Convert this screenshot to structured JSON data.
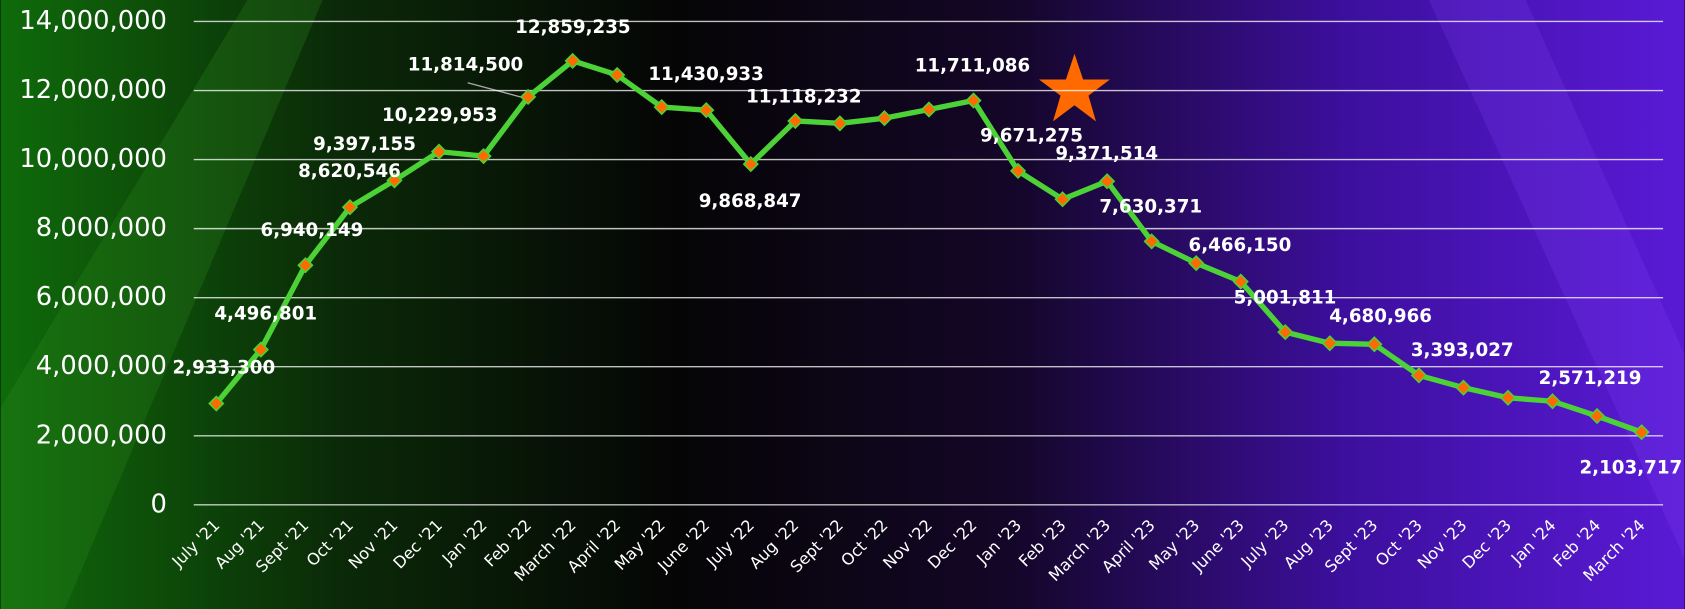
{
  "chart_data": {
    "type": "line",
    "categories": [
      "July '21",
      "Aug '21",
      "Sept '21",
      "Oct '21",
      "Nov '21",
      "Dec '21",
      "Jan '22",
      "Feb '22",
      "March '22",
      "April '22",
      "May '22",
      "June '22",
      "July '22",
      "Aug '22",
      "Sept '22",
      "Oct '22",
      "Nov '22",
      "Dec '22",
      "Jan '23",
      "Feb '23",
      "March '23",
      "April '23",
      "May '23",
      "June '23",
      "July '23",
      "Aug '23",
      "Sept '23",
      "Oct '23",
      "Nov '23",
      "Dec '23",
      "Jan '24",
      "Feb '24",
      "March '24"
    ],
    "values": [
      2933300,
      4496801,
      6940149,
      8620546,
      9397155,
      10229953,
      10100000,
      11814500,
      12859235,
      12450000,
      11520000,
      11430933,
      9868847,
      11118232,
      11050000,
      11200000,
      11450000,
      11711086,
      9671275,
      8850000,
      9371514,
      7630371,
      7000000,
      6466150,
      5001811,
      4680966,
      4650000,
      3750000,
      3393027,
      3100000,
      3000000,
      2571219,
      2103717
    ],
    "value_labels": [
      "2,933,300",
      "4,496,801",
      "6,940,149",
      "8,620,546",
      "9,397,155",
      "10,229,953",
      null,
      "11,814,500",
      "12,859,235",
      null,
      null,
      "11,430,933",
      "9,868,847",
      "11,118,232",
      null,
      null,
      null,
      "11,711,086",
      "9,671,275",
      null,
      "9,371,514",
      "7,630,371",
      null,
      "6,466,150",
      "5,001,811",
      "4,680,966",
      null,
      null,
      "3,393,027",
      null,
      null,
      "2,571,219",
      "2,103,717"
    ],
    "color": "#4cd137",
    "marker_color": "#ff6a00",
    "ylim": [
      0,
      14000000
    ],
    "yticks": [
      0,
      {
        "value": 2000000,
        "label": "2,000,000"
      },
      {
        "value": 4000000,
        "label": "4,000,000"
      },
      {
        "value": 6000000,
        "label": "6,000,000"
      },
      {
        "value": 8000000,
        "label": "8,000,000"
      },
      {
        "value": 10000000,
        "label": "10,000,000"
      },
      {
        "value": 12000000,
        "label": "12,000,000"
      },
      {
        "value": 14000000,
        "label": "14,000,000"
      }
    ],
    "grid": true
  }
}
